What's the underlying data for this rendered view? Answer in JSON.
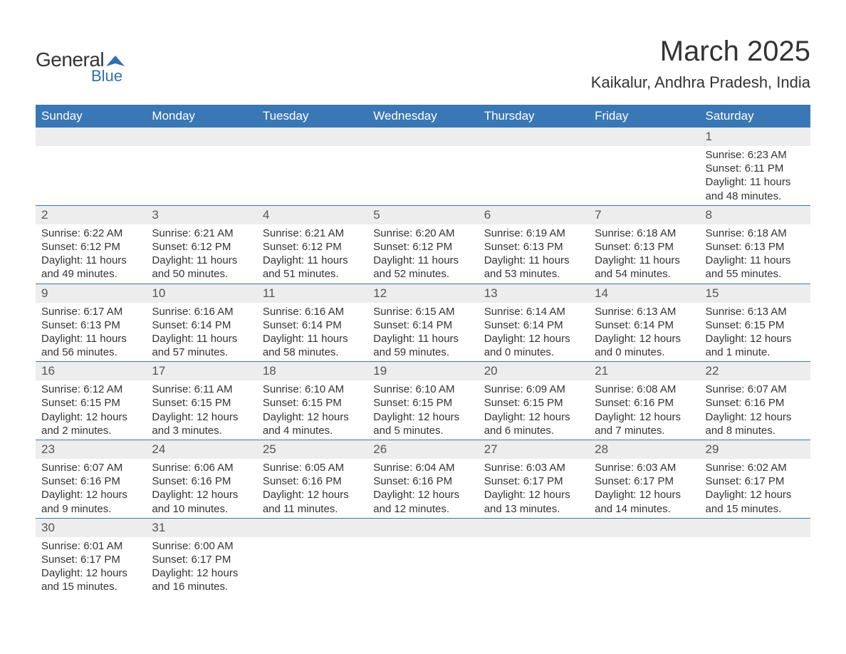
{
  "logo": {
    "general": "General",
    "blue": "Blue",
    "triangle_color": "#2e6fb0"
  },
  "title": {
    "month": "March 2025",
    "location": "Kaikalur, Andhra Pradesh, India"
  },
  "colors": {
    "header_bg": "#3a77b5",
    "header_text": "#ffffff",
    "daynum_bg": "#ededed",
    "daynum_text": "#555555",
    "body_text": "#333333",
    "rule": "#3a77b5",
    "logo_blue": "#2e6fb0"
  },
  "typography": {
    "title_fontsize": 40,
    "location_fontsize": 22,
    "weekday_fontsize": 17,
    "daynum_fontsize": 17,
    "cell_fontsize": 15
  },
  "weekdays": [
    "Sunday",
    "Monday",
    "Tuesday",
    "Wednesday",
    "Thursday",
    "Friday",
    "Saturday"
  ],
  "weeks": [
    [
      null,
      null,
      null,
      null,
      null,
      null,
      {
        "day": "1",
        "sunrise": "Sunrise: 6:23 AM",
        "sunset": "Sunset: 6:11 PM",
        "daylight": "Daylight: 11 hours and 48 minutes."
      }
    ],
    [
      {
        "day": "2",
        "sunrise": "Sunrise: 6:22 AM",
        "sunset": "Sunset: 6:12 PM",
        "daylight": "Daylight: 11 hours and 49 minutes."
      },
      {
        "day": "3",
        "sunrise": "Sunrise: 6:21 AM",
        "sunset": "Sunset: 6:12 PM",
        "daylight": "Daylight: 11 hours and 50 minutes."
      },
      {
        "day": "4",
        "sunrise": "Sunrise: 6:21 AM",
        "sunset": "Sunset: 6:12 PM",
        "daylight": "Daylight: 11 hours and 51 minutes."
      },
      {
        "day": "5",
        "sunrise": "Sunrise: 6:20 AM",
        "sunset": "Sunset: 6:12 PM",
        "daylight": "Daylight: 11 hours and 52 minutes."
      },
      {
        "day": "6",
        "sunrise": "Sunrise: 6:19 AM",
        "sunset": "Sunset: 6:13 PM",
        "daylight": "Daylight: 11 hours and 53 minutes."
      },
      {
        "day": "7",
        "sunrise": "Sunrise: 6:18 AM",
        "sunset": "Sunset: 6:13 PM",
        "daylight": "Daylight: 11 hours and 54 minutes."
      },
      {
        "day": "8",
        "sunrise": "Sunrise: 6:18 AM",
        "sunset": "Sunset: 6:13 PM",
        "daylight": "Daylight: 11 hours and 55 minutes."
      }
    ],
    [
      {
        "day": "9",
        "sunrise": "Sunrise: 6:17 AM",
        "sunset": "Sunset: 6:13 PM",
        "daylight": "Daylight: 11 hours and 56 minutes."
      },
      {
        "day": "10",
        "sunrise": "Sunrise: 6:16 AM",
        "sunset": "Sunset: 6:14 PM",
        "daylight": "Daylight: 11 hours and 57 minutes."
      },
      {
        "day": "11",
        "sunrise": "Sunrise: 6:16 AM",
        "sunset": "Sunset: 6:14 PM",
        "daylight": "Daylight: 11 hours and 58 minutes."
      },
      {
        "day": "12",
        "sunrise": "Sunrise: 6:15 AM",
        "sunset": "Sunset: 6:14 PM",
        "daylight": "Daylight: 11 hours and 59 minutes."
      },
      {
        "day": "13",
        "sunrise": "Sunrise: 6:14 AM",
        "sunset": "Sunset: 6:14 PM",
        "daylight": "Daylight: 12 hours and 0 minutes."
      },
      {
        "day": "14",
        "sunrise": "Sunrise: 6:13 AM",
        "sunset": "Sunset: 6:14 PM",
        "daylight": "Daylight: 12 hours and 0 minutes."
      },
      {
        "day": "15",
        "sunrise": "Sunrise: 6:13 AM",
        "sunset": "Sunset: 6:15 PM",
        "daylight": "Daylight: 12 hours and 1 minute."
      }
    ],
    [
      {
        "day": "16",
        "sunrise": "Sunrise: 6:12 AM",
        "sunset": "Sunset: 6:15 PM",
        "daylight": "Daylight: 12 hours and 2 minutes."
      },
      {
        "day": "17",
        "sunrise": "Sunrise: 6:11 AM",
        "sunset": "Sunset: 6:15 PM",
        "daylight": "Daylight: 12 hours and 3 minutes."
      },
      {
        "day": "18",
        "sunrise": "Sunrise: 6:10 AM",
        "sunset": "Sunset: 6:15 PM",
        "daylight": "Daylight: 12 hours and 4 minutes."
      },
      {
        "day": "19",
        "sunrise": "Sunrise: 6:10 AM",
        "sunset": "Sunset: 6:15 PM",
        "daylight": "Daylight: 12 hours and 5 minutes."
      },
      {
        "day": "20",
        "sunrise": "Sunrise: 6:09 AM",
        "sunset": "Sunset: 6:15 PM",
        "daylight": "Daylight: 12 hours and 6 minutes."
      },
      {
        "day": "21",
        "sunrise": "Sunrise: 6:08 AM",
        "sunset": "Sunset: 6:16 PM",
        "daylight": "Daylight: 12 hours and 7 minutes."
      },
      {
        "day": "22",
        "sunrise": "Sunrise: 6:07 AM",
        "sunset": "Sunset: 6:16 PM",
        "daylight": "Daylight: 12 hours and 8 minutes."
      }
    ],
    [
      {
        "day": "23",
        "sunrise": "Sunrise: 6:07 AM",
        "sunset": "Sunset: 6:16 PM",
        "daylight": "Daylight: 12 hours and 9 minutes."
      },
      {
        "day": "24",
        "sunrise": "Sunrise: 6:06 AM",
        "sunset": "Sunset: 6:16 PM",
        "daylight": "Daylight: 12 hours and 10 minutes."
      },
      {
        "day": "25",
        "sunrise": "Sunrise: 6:05 AM",
        "sunset": "Sunset: 6:16 PM",
        "daylight": "Daylight: 12 hours and 11 minutes."
      },
      {
        "day": "26",
        "sunrise": "Sunrise: 6:04 AM",
        "sunset": "Sunset: 6:16 PM",
        "daylight": "Daylight: 12 hours and 12 minutes."
      },
      {
        "day": "27",
        "sunrise": "Sunrise: 6:03 AM",
        "sunset": "Sunset: 6:17 PM",
        "daylight": "Daylight: 12 hours and 13 minutes."
      },
      {
        "day": "28",
        "sunrise": "Sunrise: 6:03 AM",
        "sunset": "Sunset: 6:17 PM",
        "daylight": "Daylight: 12 hours and 14 minutes."
      },
      {
        "day": "29",
        "sunrise": "Sunrise: 6:02 AM",
        "sunset": "Sunset: 6:17 PM",
        "daylight": "Daylight: 12 hours and 15 minutes."
      }
    ],
    [
      {
        "day": "30",
        "sunrise": "Sunrise: 6:01 AM",
        "sunset": "Sunset: 6:17 PM",
        "daylight": "Daylight: 12 hours and 15 minutes."
      },
      {
        "day": "31",
        "sunrise": "Sunrise: 6:00 AM",
        "sunset": "Sunset: 6:17 PM",
        "daylight": "Daylight: 12 hours and 16 minutes."
      },
      null,
      null,
      null,
      null,
      null
    ]
  ]
}
